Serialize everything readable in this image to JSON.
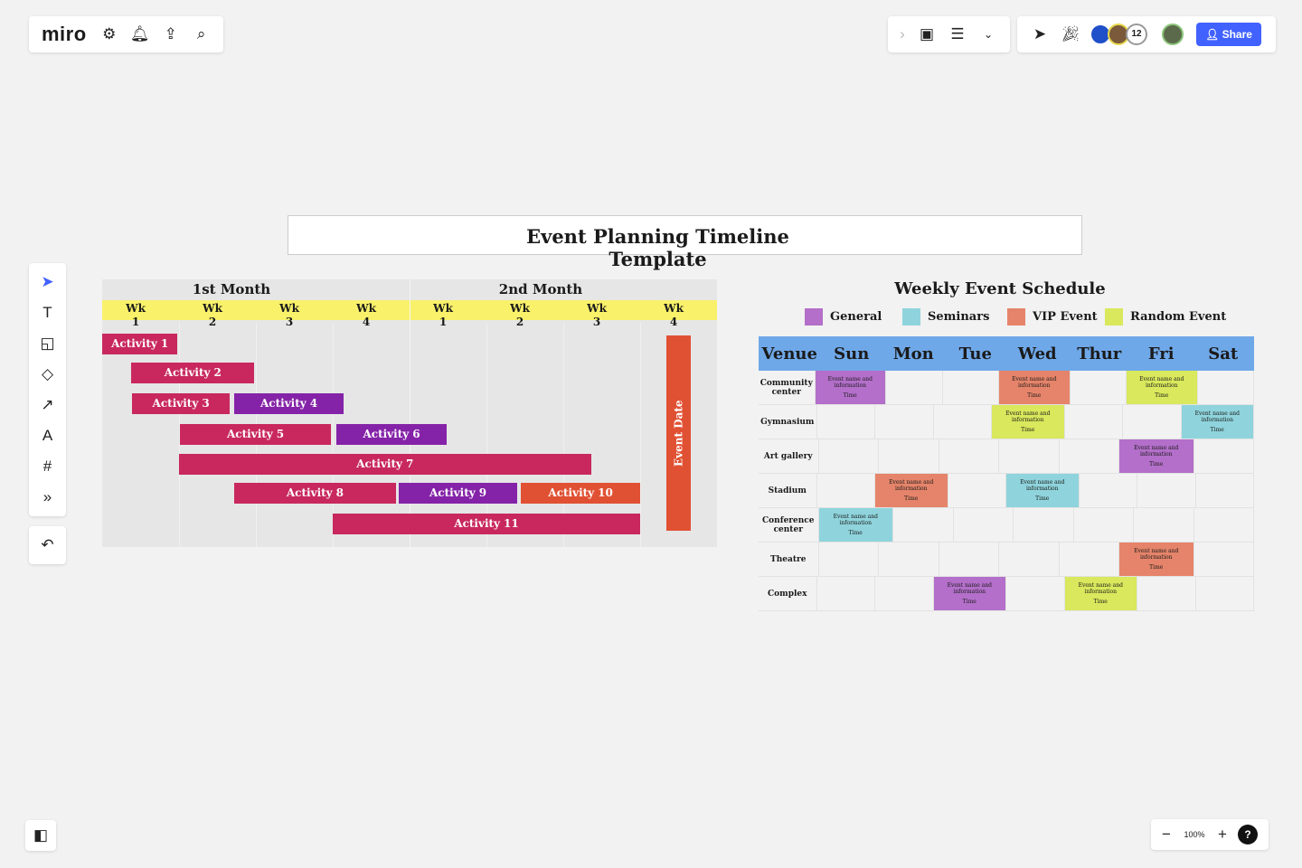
{
  "app": {
    "logo": "miro",
    "share_label": "Share",
    "collaborator_count": "12",
    "zoom_level": "100%",
    "help_label": "?"
  },
  "board": {
    "title": "Event Planning Timeline Template"
  },
  "timeline": {
    "months": [
      "1st Month",
      "2nd Month"
    ],
    "weeks": [
      "Wk 1",
      "Wk 2",
      "Wk 3",
      "Wk 4",
      "Wk 1",
      "Wk 2",
      "Wk 3",
      "Wk 4"
    ],
    "activities": [
      {
        "label": "Activity",
        "num": "1",
        "start": 1,
        "end": 1.98,
        "color": "#c8285e",
        "row": 0
      },
      {
        "label": "Activity",
        "num": "2",
        "start": 1.38,
        "end": 2.98,
        "color": "#c8285e",
        "row": 1
      },
      {
        "label": "Activity",
        "num": "3",
        "start": 1.39,
        "end": 2.66,
        "color": "#c8285e",
        "row": 2
      },
      {
        "label": "Activity",
        "num": "4",
        "start": 2.72,
        "end": 4.14,
        "color": "#8523a8",
        "row": 2
      },
      {
        "label": "Activity",
        "num": "5",
        "start": 2.01,
        "end": 3.98,
        "color": "#c8285e",
        "row": 3
      },
      {
        "label": "Activity",
        "num": "6",
        "start": 4.05,
        "end": 5.48,
        "color": "#8523a8",
        "row": 3
      },
      {
        "label": "Activity",
        "num": "7",
        "start": 2,
        "end": 7.36,
        "color": "#c8285e",
        "row": 4
      },
      {
        "label": "Activity",
        "num": "8",
        "start": 2.72,
        "end": 4.82,
        "color": "#c8285e",
        "row": 5
      },
      {
        "label": "Activity",
        "num": "9",
        "start": 4.86,
        "end": 6.4,
        "color": "#8523a8",
        "row": 5
      },
      {
        "label": "Activity",
        "num": "10",
        "start": 6.45,
        "end": 8,
        "color": "#e05133",
        "row": 5
      },
      {
        "label": "Activity",
        "num": "11",
        "start": 4,
        "end": 8,
        "color": "#c8285e",
        "row": 6
      }
    ],
    "event_date_label": "Event Date"
  },
  "schedule": {
    "title": "Weekly Event Schedule",
    "legend": [
      {
        "label": "General",
        "color": "#b36fc9"
      },
      {
        "label": "Seminars",
        "color": "#8fd4dc"
      },
      {
        "label": "VIP Event",
        "color": "#e5846a"
      },
      {
        "label": "Random Event",
        "color": "#d9e85c"
      }
    ],
    "columns": [
      "Venue",
      "Sun",
      "Mon",
      "Tue",
      "Wed",
      "Thur",
      "Fri",
      "Sat"
    ],
    "event_text": "Event name and information",
    "time_text": "Time",
    "rows": [
      {
        "venue": "Community center",
        "cells": [
          "General",
          "",
          "",
          "VIP Event",
          "",
          "Random Event",
          ""
        ]
      },
      {
        "venue": "Gymnasium",
        "cells": [
          "",
          "",
          "",
          "Random Event",
          "",
          "",
          "Seminars"
        ]
      },
      {
        "venue": "Art gallery",
        "cells": [
          "",
          "",
          "",
          "",
          "",
          "General",
          ""
        ]
      },
      {
        "venue": "Stadium",
        "cells": [
          "",
          "VIP Event",
          "",
          "Seminars",
          "",
          "",
          ""
        ]
      },
      {
        "venue": "Conference center",
        "cells": [
          "Seminars",
          "",
          "",
          "",
          "",
          "",
          ""
        ]
      },
      {
        "venue": "Theatre",
        "cells": [
          "",
          "",
          "",
          "",
          "",
          "VIP Event",
          ""
        ]
      },
      {
        "venue": "Complex",
        "cells": [
          "",
          "",
          "General",
          "",
          "Random Event",
          "",
          ""
        ]
      }
    ]
  }
}
